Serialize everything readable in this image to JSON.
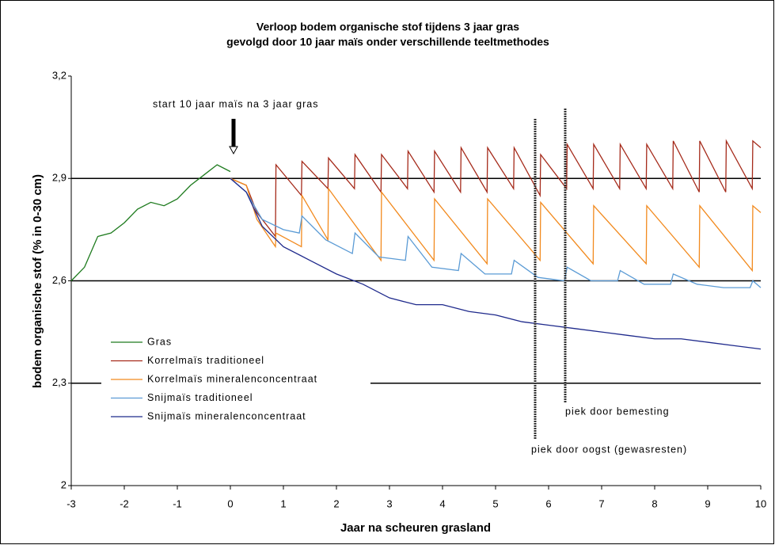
{
  "chart_data": {
    "type": "line",
    "title": [
      "Verloop bodem organische stof tijdens 3 jaar gras",
      "gevolgd door 10 jaar maïs onder verschillende teeltmethodes"
    ],
    "x_label": "Jaar na scheuren grasland",
    "y_label": "bodem organische stof (% in 0-30 cm)",
    "annotations": [
      "start 10 jaar maïs na 3 jaar gras",
      "piek door bemesting",
      "piek door oogst (gewasresten)"
    ],
    "xlim": [
      -3,
      10
    ],
    "xticks": [
      -3,
      -2,
      -1,
      0,
      1,
      2,
      3,
      4,
      5,
      6,
      7,
      8,
      9,
      10
    ],
    "ylim": [
      2,
      3.2
    ],
    "yticks": [
      2,
      {
        "value": 2.3,
        "label": "2,3"
      },
      {
        "value": 2.6,
        "label": "2,6"
      },
      {
        "value": 2.9,
        "label": "2,9"
      },
      {
        "value": 3.2,
        "label": "3,2"
      }
    ],
    "grid": true,
    "legend": "lower left",
    "series": [
      {
        "name": "Gras",
        "color": "#1e7b1e",
        "x": [
          -3,
          -2.75,
          -2.5,
          -2.25,
          -2,
          -1.75,
          -1.5,
          -1.25,
          -1,
          -0.75,
          -0.5,
          -0.25,
          0
        ],
        "values": [
          2.6,
          2.64,
          2.73,
          2.74,
          2.77,
          2.81,
          2.83,
          2.82,
          2.84,
          2.88,
          2.91,
          2.94,
          2.92
        ]
      },
      {
        "name": "Korrelmaïs traditioneel",
        "color": "#a52a1a",
        "x": [
          0,
          0.3,
          0.5,
          0.85,
          0.86,
          1.34,
          1.35,
          1.84,
          1.85,
          2.34,
          2.35,
          2.84,
          2.85,
          3.34,
          3.35,
          3.84,
          3.85,
          4.34,
          4.35,
          4.84,
          4.85,
          5.34,
          5.35,
          5.84,
          5.85,
          6.34,
          6.35,
          6.84,
          6.85,
          7.34,
          7.35,
          7.84,
          7.85,
          8.34,
          8.35,
          8.84,
          8.85,
          9.34,
          9.35,
          9.84,
          9.85,
          10
        ],
        "values": [
          2.9,
          2.88,
          2.8,
          2.73,
          2.94,
          2.85,
          2.95,
          2.87,
          2.96,
          2.87,
          2.97,
          2.86,
          2.97,
          2.87,
          2.98,
          2.86,
          2.98,
          2.86,
          2.99,
          2.86,
          2.99,
          2.87,
          2.99,
          2.85,
          2.97,
          2.87,
          3.0,
          2.87,
          3.0,
          2.87,
          3.0,
          2.87,
          3.0,
          2.87,
          3.01,
          2.86,
          3.01,
          2.86,
          3.01,
          2.87,
          3.01,
          2.99
        ]
      },
      {
        "name": "Korrelmaïs mineralenconcentraat",
        "color": "#f28a1e",
        "x": [
          0,
          0.3,
          0.5,
          0.85,
          0.86,
          1.34,
          1.35,
          1.84,
          1.85,
          2.84,
          2.85,
          3.84,
          3.85,
          4.84,
          4.85,
          5.84,
          5.85,
          6.84,
          6.85,
          7.84,
          7.85,
          8.84,
          8.85,
          9.84,
          9.85,
          10
        ],
        "values": [
          2.9,
          2.88,
          2.78,
          2.7,
          2.74,
          2.7,
          2.85,
          2.72,
          2.87,
          2.66,
          2.86,
          2.66,
          2.84,
          2.65,
          2.84,
          2.66,
          2.83,
          2.65,
          2.82,
          2.65,
          2.82,
          2.64,
          2.82,
          2.63,
          2.82,
          2.8
        ]
      },
      {
        "name": "Snijmaïs traditioneel",
        "color": "#5b9bd5",
        "x": [
          0,
          0.3,
          0.6,
          1,
          1.3,
          1.35,
          1.8,
          2.3,
          2.35,
          2.8,
          3.3,
          3.35,
          3.8,
          4.3,
          4.35,
          4.8,
          5.3,
          5.35,
          5.8,
          6.3,
          6.35,
          6.8,
          7.3,
          7.35,
          7.8,
          8.3,
          8.35,
          8.8,
          9.3,
          9.8,
          9.85,
          10
        ],
        "values": [
          2.9,
          2.86,
          2.78,
          2.75,
          2.74,
          2.79,
          2.72,
          2.68,
          2.74,
          2.67,
          2.66,
          2.73,
          2.64,
          2.63,
          2.68,
          2.62,
          2.62,
          2.66,
          2.61,
          2.6,
          2.64,
          2.6,
          2.6,
          2.63,
          2.59,
          2.59,
          2.62,
          2.59,
          2.58,
          2.58,
          2.6,
          2.58
        ]
      },
      {
        "name": "Snijmaïs mineralenconcentraat",
        "color": "#1f2a8c",
        "x": [
          0,
          0.3,
          0.6,
          1,
          1.5,
          2,
          2.5,
          3,
          3.5,
          4,
          4.5,
          5,
          5.5,
          6,
          6.5,
          7,
          7.5,
          8,
          8.5,
          9,
          9.5,
          10
        ],
        "values": [
          2.9,
          2.86,
          2.76,
          2.7,
          2.66,
          2.62,
          2.59,
          2.55,
          2.53,
          2.53,
          2.51,
          2.5,
          2.48,
          2.47,
          2.46,
          2.45,
          2.44,
          2.43,
          2.43,
          2.42,
          2.41,
          2.4
        ]
      }
    ]
  }
}
